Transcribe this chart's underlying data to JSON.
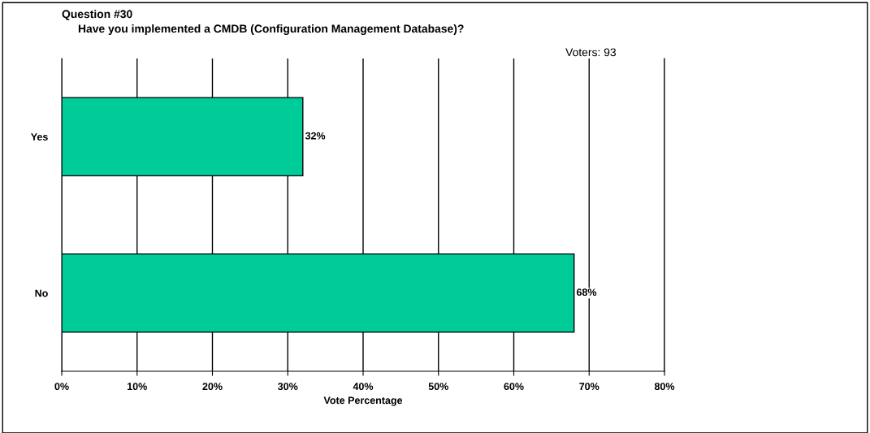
{
  "chart_data": {
    "type": "bar",
    "orientation": "horizontal",
    "title": "Question #30",
    "subtitle": "Have you implemented a CMDB (Configuration Management Database)?",
    "xlabel": "Vote Percentage",
    "annotations": [
      "Voters: 93"
    ],
    "categories": [
      "Yes",
      "No"
    ],
    "values": [
      32,
      68
    ],
    "color": "#00cc99",
    "value_labels": [
      "32%",
      "68%"
    ],
    "xlim": [
      0,
      80
    ],
    "xticks": [
      {
        "value": 0,
        "label": "0%"
      },
      {
        "value": 10,
        "label": "10%"
      },
      {
        "value": 20,
        "label": "20%"
      },
      {
        "value": 30,
        "label": "30%"
      },
      {
        "value": 40,
        "label": "40%"
      },
      {
        "value": 50,
        "label": "50%"
      },
      {
        "value": 60,
        "label": "60%"
      },
      {
        "value": 70,
        "label": "70%"
      },
      {
        "value": 80,
        "label": "80%"
      }
    ],
    "grid": "x",
    "legend": false
  }
}
